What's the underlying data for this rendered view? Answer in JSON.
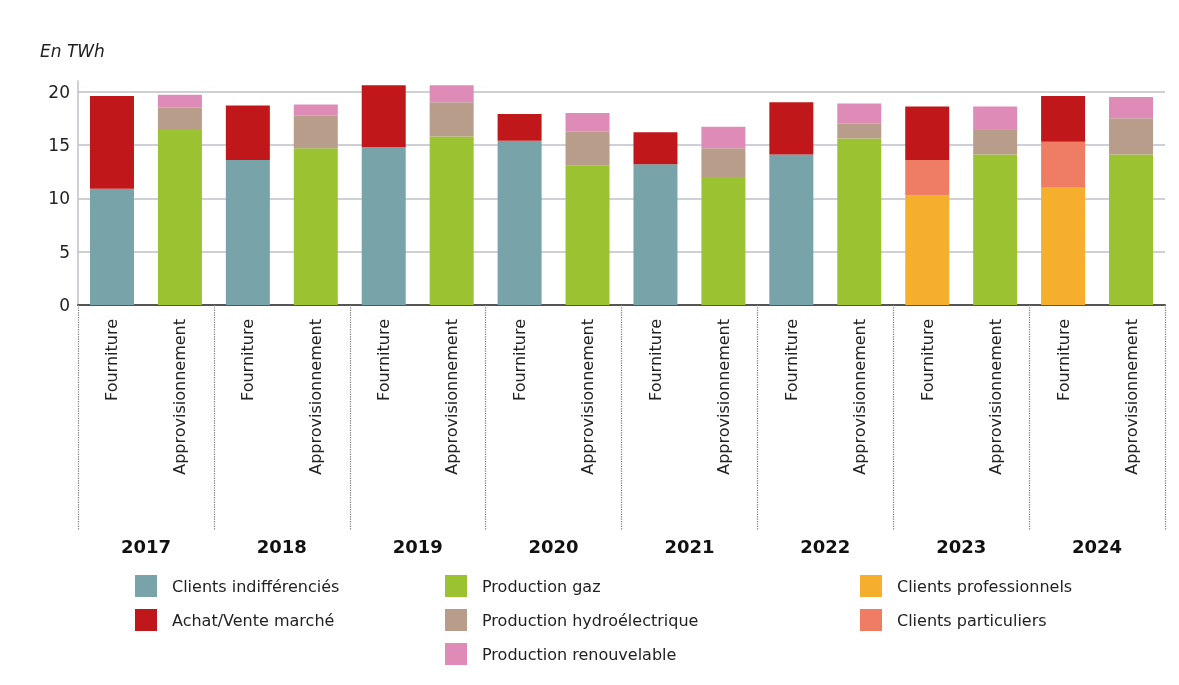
{
  "chart_data": {
    "type": "bar",
    "stacked": true,
    "ylabel": "En TWh",
    "categories": [
      "Fourniture",
      "Approvisionnement",
      "Fourniture",
      "Approvisionnement",
      "Fourniture",
      "Approvisionnement",
      "Fourniture",
      "Approvisionnement",
      "Fourniture",
      "Approvisionnement",
      "Fourniture",
      "Approvisionnement",
      "Fourniture",
      "Approvisionnement",
      "Fourniture",
      "Approvisionnement"
    ],
    "annotations": [
      "2017",
      "2018",
      "2019",
      "2020",
      "2021",
      "2022",
      "2023",
      "2024"
    ],
    "series": [
      {
        "name": "Clients indifférenciés",
        "color": "#78a3a8",
        "values": [
          10.9,
          null,
          13.6,
          null,
          14.8,
          null,
          15.4,
          null,
          13.2,
          null,
          14.1,
          null,
          null,
          null,
          null,
          null
        ]
      },
      {
        "name": "Clients professionnels",
        "color": "#f6ae2d",
        "values": [
          null,
          null,
          null,
          null,
          null,
          null,
          null,
          null,
          null,
          null,
          null,
          null,
          10.3,
          null,
          11.0,
          null
        ]
      },
      {
        "name": "Clients particuliers",
        "color": "#ef7d63",
        "values": [
          null,
          null,
          null,
          null,
          null,
          null,
          null,
          null,
          null,
          null,
          null,
          null,
          3.3,
          null,
          4.3,
          null
        ]
      },
      {
        "name": "Achat/Vente marché",
        "color": "#c0171a",
        "values": [
          8.7,
          null,
          5.1,
          null,
          5.8,
          null,
          2.5,
          null,
          3.0,
          null,
          4.9,
          null,
          5.0,
          null,
          4.3,
          null
        ]
      },
      {
        "name": "Production gaz",
        "color": "#9bc230",
        "values": [
          null,
          16.4,
          null,
          14.7,
          null,
          15.8,
          null,
          13.1,
          null,
          12.0,
          null,
          15.6,
          null,
          14.1,
          null,
          14.1
        ]
      },
      {
        "name": "Production hydroélectrique",
        "color": "#b89e8a",
        "values": [
          null,
          2.1,
          null,
          3.1,
          null,
          3.2,
          null,
          3.2,
          null,
          2.7,
          null,
          1.4,
          null,
          2.3,
          null,
          3.4
        ]
      },
      {
        "name": "Production renouvelable",
        "color": "#de8bb8",
        "values": [
          null,
          1.2,
          null,
          1.0,
          null,
          1.6,
          null,
          1.7,
          null,
          2.0,
          null,
          1.9,
          null,
          2.2,
          null,
          2.0
        ]
      }
    ],
    "ylim": [
      0,
      21
    ],
    "yticks": [
      0,
      5,
      10,
      15,
      20
    ],
    "grid": "y",
    "legend": "bottom"
  }
}
